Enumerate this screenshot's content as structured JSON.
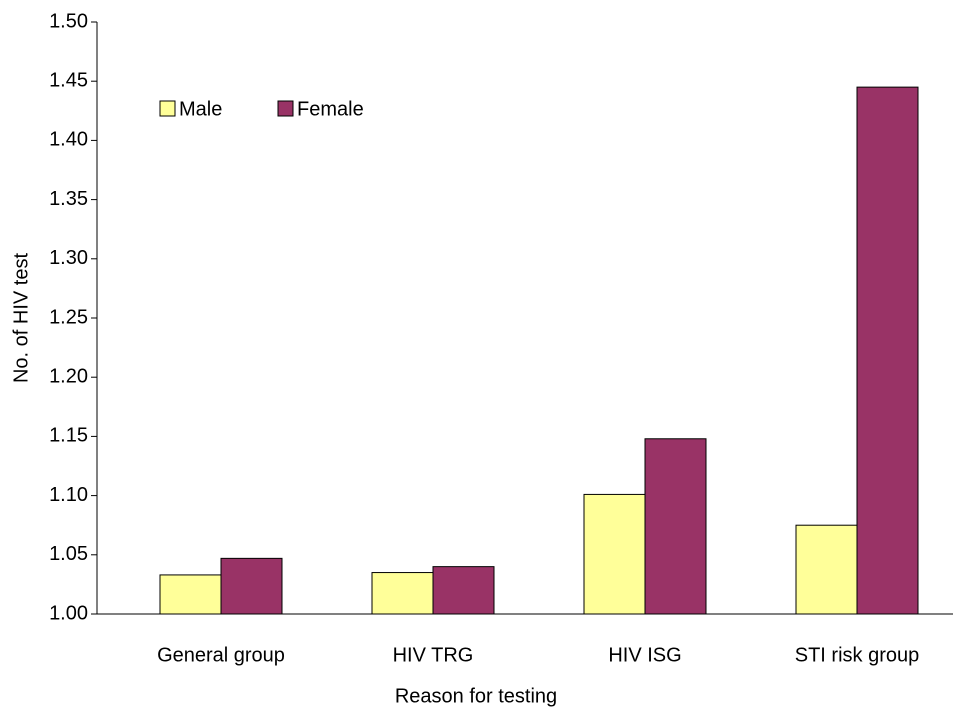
{
  "chart_data": {
    "type": "bar",
    "x_label": "Reason for testing",
    "y_label": "No. of HIV test",
    "categories": [
      "General group",
      "HIV TRG",
      "HIV ISG",
      "STI risk group"
    ],
    "series": [
      {
        "name": "Male",
        "color": "#ffff99",
        "values": [
          1.033,
          1.035,
          1.101,
          1.075
        ]
      },
      {
        "name": "Female",
        "color": "#993366",
        "values": [
          1.047,
          1.04,
          1.148,
          1.445
        ]
      }
    ],
    "ylim": [
      1.0,
      1.5
    ],
    "yticks": [
      {
        "value": 1.0,
        "label": "1.00"
      },
      {
        "value": 1.05,
        "label": "1.05"
      },
      {
        "value": 1.1,
        "label": "1.10"
      },
      {
        "value": 1.15,
        "label": "1.15"
      },
      {
        "value": 1.2,
        "label": "1.20"
      },
      {
        "value": 1.25,
        "label": "1.25"
      },
      {
        "value": 1.3,
        "label": "1.30"
      },
      {
        "value": 1.35,
        "label": "1.35"
      },
      {
        "value": 1.4,
        "label": "1.40"
      },
      {
        "value": 1.45,
        "label": "1.45"
      },
      {
        "value": 1.5,
        "label": "1.50"
      }
    ],
    "legend": "top-left"
  }
}
